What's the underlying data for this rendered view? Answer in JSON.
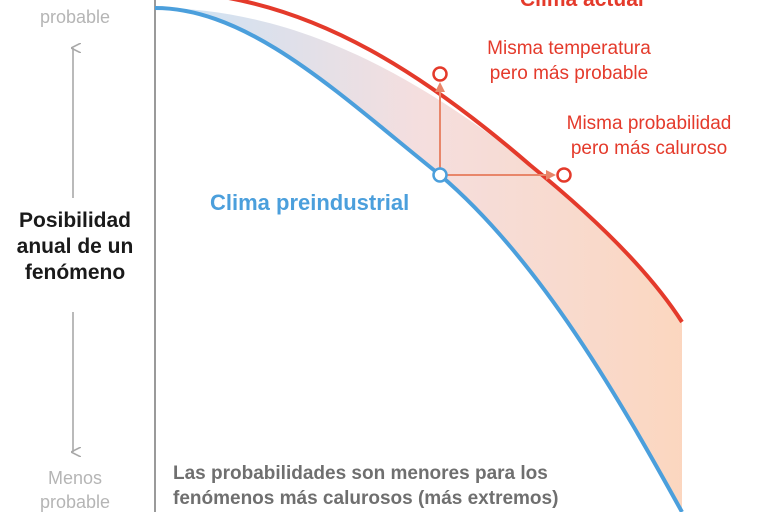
{
  "labels": {
    "more_probable": "probable",
    "less_probable_line1": "Menos",
    "less_probable_line2": "probable",
    "axis_title_line1": "Posibilidad",
    "axis_title_line2": "anual de un",
    "axis_title_line3": "fenómeno",
    "current_climate": "Clima actual",
    "preindustrial_climate": "Clima preindustrial",
    "same_temp_line1": "Misma temperatura",
    "same_temp_line2": "pero más probable",
    "same_prob_line1": "Misma probabilidad",
    "same_prob_line2": "pero más caluroso",
    "note_line1": "Las probabilidades son menores para los",
    "note_line2": "fenómenos más calurosos (más extremos)"
  },
  "colors": {
    "current": "#e43a2b",
    "preindustrial": "#4b9fdc",
    "arrow": "#e8866a",
    "axis": "#9a9a9a",
    "muted_text": "#b5b5b5"
  }
}
